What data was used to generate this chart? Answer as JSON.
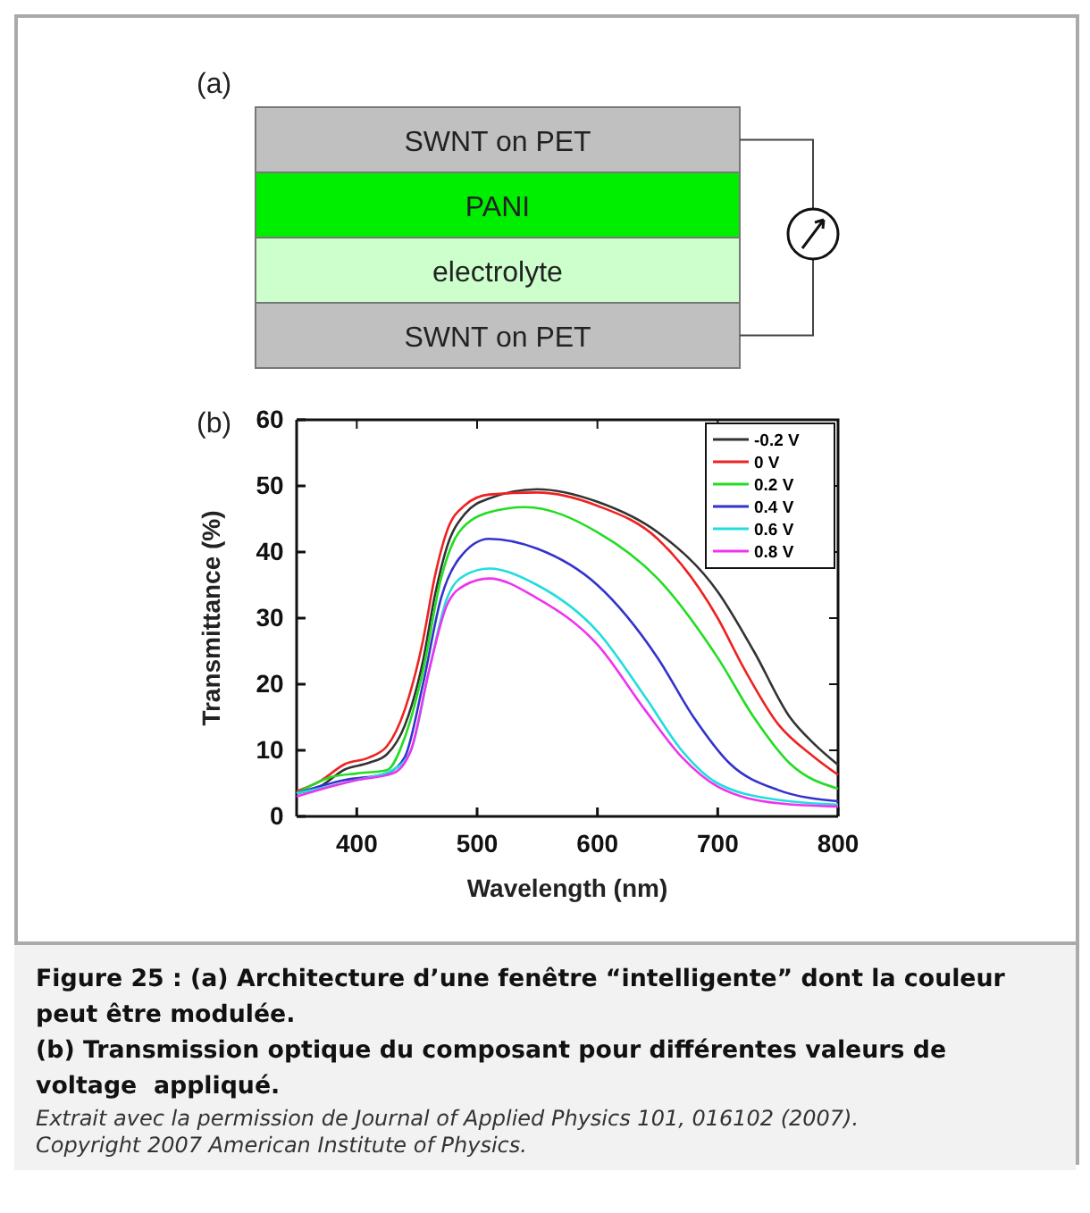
{
  "chart_data": {
    "type": "line",
    "xlabel": "Wavelength (nm)",
    "ylabel": "Transmittance (%)",
    "xlim": [
      350,
      800
    ],
    "xticks": [
      400,
      500,
      600,
      700,
      800
    ],
    "ylim": [
      0,
      60
    ],
    "yticks": [
      0,
      10,
      20,
      30,
      40,
      50,
      60
    ],
    "grid": false,
    "legend": "top right",
    "marker": "none",
    "line_style": "solid",
    "series": [
      {
        "name": "-0.2 V",
        "color": "#333333",
        "x": [
          350,
          370,
          390,
          410,
          425,
          440,
          455,
          465,
          475,
          490,
          510,
          550,
          600,
          650,
          700,
          730,
          760,
          780,
          800
        ],
        "values": [
          3.5,
          4.6,
          7.1,
          8.1,
          9.4,
          13.8,
          23.5,
          33.5,
          40.8,
          45.8,
          48.1,
          49.5,
          47.6,
          43,
          34,
          25,
          15,
          11,
          7.8
        ]
      },
      {
        "name": "0 V",
        "color": "#ee2222",
        "x": [
          350,
          370,
          390,
          410,
          425,
          440,
          455,
          465,
          475,
          490,
          510,
          550,
          600,
          650,
          700,
          720,
          750,
          780,
          800
        ],
        "values": [
          3.8,
          5.4,
          7.9,
          8.9,
          10.6,
          16.2,
          26.6,
          36.4,
          43.2,
          47.1,
          48.7,
          49,
          47,
          42,
          30,
          23,
          14,
          9,
          6.3
        ]
      },
      {
        "name": "0.2 V",
        "color": "#22dd22",
        "x": [
          350,
          380,
          400,
          425,
          440,
          455,
          470,
          485,
          510,
          540,
          600,
          650,
          700,
          730,
          760,
          800
        ],
        "values": [
          3.5,
          6,
          6.5,
          7,
          12,
          22,
          36,
          43,
          46,
          46.8,
          43,
          36,
          24,
          15,
          8,
          4.2
        ]
      },
      {
        "name": "0.4 V",
        "color": "#3333cc",
        "x": [
          350,
          390,
          425,
          440,
          455,
          470,
          485,
          510,
          550,
          600,
          650,
          680,
          710,
          750,
          800
        ],
        "values": [
          3.5,
          5.5,
          6.5,
          9,
          20,
          33,
          39,
          42,
          40.5,
          35,
          24,
          15,
          8,
          4,
          2.3
        ]
      },
      {
        "name": "0.6 V",
        "color": "#22dddd",
        "x": [
          350,
          400,
          430,
          445,
          460,
          475,
          490,
          510,
          550,
          600,
          640,
          670,
          700,
          750,
          800
        ],
        "values": [
          3.5,
          5.5,
          7,
          10,
          22,
          33,
          36.5,
          37.5,
          35,
          28,
          18,
          10,
          5,
          2.5,
          1.8
        ]
      },
      {
        "name": "0.8 V",
        "color": "#ee33ee",
        "x": [
          350,
          400,
          430,
          445,
          460,
          475,
          490,
          510,
          550,
          600,
          640,
          670,
          700,
          750,
          800
        ],
        "values": [
          3,
          5.5,
          6.5,
          10,
          22,
          32,
          35,
          36,
          33,
          26,
          16,
          9,
          4.5,
          2,
          1.5
        ]
      }
    ],
    "annotations": [
      "(a)",
      "SWNT on PET",
      "PANI",
      "electrolyte",
      "SWNT on PET",
      "(b)",
      "Figure 25 : (a) Architecture d’une fenêtre “intelligente” dont la couleur peut être modulée.",
      "(b) Transmission optique du composant pour différentes valeurs de voltage  appliqué.",
      "Extrait avec la permission de Journal of Applied Physics 101, 016102 (2007).",
      "Copyright 2007 American Institute of Physics."
    ]
  }
}
